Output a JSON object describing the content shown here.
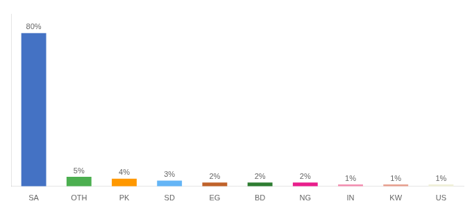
{
  "chart_data": {
    "type": "bar",
    "categories": [
      "SA",
      "OTH",
      "PK",
      "SD",
      "EG",
      "BD",
      "NG",
      "IN",
      "KW",
      "US"
    ],
    "values": [
      80,
      5,
      4,
      3,
      2,
      2,
      2,
      1,
      1,
      1
    ],
    "value_labels": [
      "80%",
      "5%",
      "4%",
      "3%",
      "2%",
      "2%",
      "2%",
      "1%",
      "1%",
      "1%"
    ],
    "colors": [
      "#4472c4",
      "#4caf50",
      "#ff9800",
      "#64b5f6",
      "#c0622a",
      "#2e7d32",
      "#e91e8c",
      "#f48fb1",
      "#e8a090",
      "#f0f0d8"
    ],
    "ylim": [
      0,
      90
    ],
    "data_labels": true,
    "grid": false,
    "tick_labels": "x"
  }
}
